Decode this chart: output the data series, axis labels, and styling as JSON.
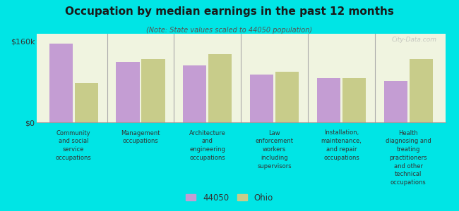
{
  "title": "Occupation by median earnings in the past 12 months",
  "subtitle": "(Note: State values scaled to 44050 population)",
  "background_color": "#00e5e5",
  "plot_bg_color": "#f0f4e0",
  "categories": [
    "Community\nand social\nservice\noccupations",
    "Management\noccupations",
    "Architecture\nand\nengineering\noccupations",
    "Law\nenforcement\nworkers\nincluding\nsupervisors",
    "Installation,\nmaintenance,\nand repair\noccupations",
    "Health\ndiagnosing and\ntreating\npractitioners\nand other\ntechnical\noccupations"
  ],
  "values_44050": [
    155000,
    120000,
    113000,
    95000,
    88000,
    82000
  ],
  "values_ohio": [
    78000,
    125000,
    135000,
    100000,
    88000,
    125000
  ],
  "color_44050": "#c49dd3",
  "color_ohio": "#c8cc8a",
  "ylim": [
    0,
    175000
  ],
  "yticks": [
    0,
    160000
  ],
  "ytick_labels": [
    "$0",
    "$160k"
  ],
  "legend_44050": "44050",
  "legend_ohio": "Ohio",
  "watermark": "City-Data.com"
}
